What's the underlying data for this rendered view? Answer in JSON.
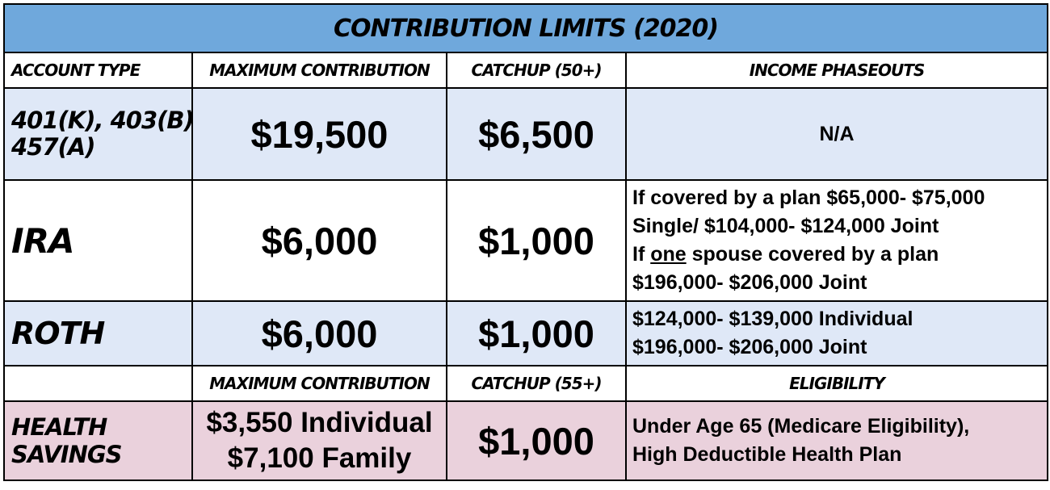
{
  "colors": {
    "title_bg": "#6fa8dc",
    "row_blue": "#dfe8f7",
    "row_pink": "#ead1dc",
    "border": "#000000"
  },
  "title": "CONTRIBUTION LIMITS (2020)",
  "headers": {
    "account_type": "ACCOUNT TYPE",
    "max_contribution": "MAXIMUM CONTRIBUTION",
    "catchup": "CATCHUP (50+)",
    "income_phaseouts": "INCOME PHASEOUTS"
  },
  "rows": [
    {
      "account_line1": "401(K), 403(B),",
      "account_line2": "457(A)",
      "max": "$19,500",
      "catchup": "$6,500",
      "phaseout": "N/A"
    },
    {
      "account": "IRA",
      "max": "$6,000",
      "catchup": "$1,000",
      "phaseout_line1": "If covered by a plan $65,000- $75,000",
      "phaseout_line2": "Single/ $104,000- $124,000 Joint",
      "phaseout_line3_pre": "If ",
      "phaseout_line3_underlined": "one",
      "phaseout_line3_post": " spouse covered by a plan",
      "phaseout_line4": "$196,000- $206,000 Joint"
    },
    {
      "account": "ROTH",
      "max": "$6,000",
      "catchup": "$1,000",
      "phaseout_line1": "$124,000- $139,000 Individual",
      "phaseout_line2": "$196,000- $206,000 Joint"
    }
  ],
  "hsa_headers": {
    "account_type": "",
    "max_contribution": "MAXIMUM CONTRIBUTION",
    "catchup": "CATCHUP (55+)",
    "eligibility": "ELIGIBILITY"
  },
  "hsa": {
    "account": "HEALTH SAVINGS",
    "max_line1": "$3,550 Individual",
    "max_line2": "$7,100 Family",
    "catchup": "$1,000",
    "eligibility_line1": "Under Age 65 (Medicare Eligibility),",
    "eligibility_line2": "High Deductible Health Plan"
  }
}
